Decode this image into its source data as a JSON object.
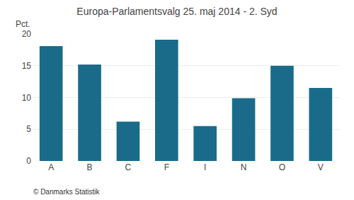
{
  "chart_data": {
    "type": "bar",
    "title": "Europa-Parlamentsvalg 25. maj 2014 - 2. Syd",
    "categories": [
      "A",
      "B",
      "C",
      "F",
      "I",
      "N",
      "O",
      "V"
    ],
    "values": [
      18.1,
      15.2,
      6.2,
      19.1,
      5.5,
      9.9,
      15.0,
      11.5
    ],
    "color": "#1a6b8a",
    "ylabel": "Pct.",
    "ylim": [
      0,
      20
    ],
    "yticks": [
      0,
      5,
      10,
      15,
      20
    ],
    "grid": true,
    "annotations": [
      "© Danmarks Statistik"
    ]
  }
}
